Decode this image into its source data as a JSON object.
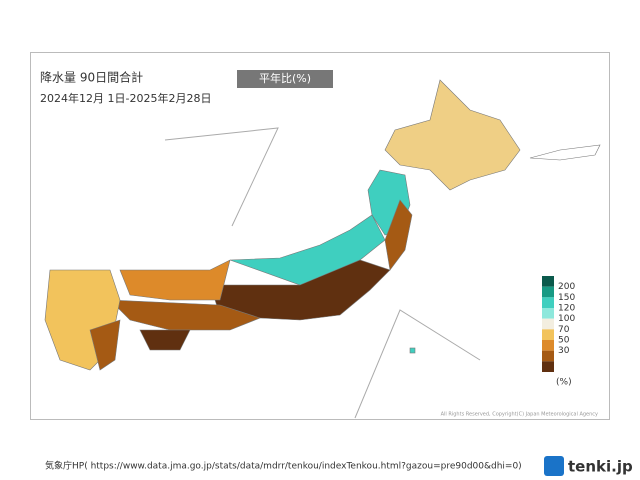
{
  "header": {
    "title": "降水量  90日間合計",
    "period": "2024年12月 1日-2025年2月28日",
    "badge": "平年比(%)"
  },
  "legend": {
    "ticks": [
      200,
      150,
      120,
      100,
      70,
      50,
      30
    ],
    "unit": "(%)",
    "colors": [
      "#0b5a4c",
      "#179a84",
      "#3fcfbf",
      "#8ee8dc",
      "#f3eee0",
      "#f2c35c",
      "#dd8a2a",
      "#a55a14",
      "#603010"
    ]
  },
  "copyright": "All Rights Reserved, Copyright(C) Japan Meteorological Agency",
  "footer": {
    "source": "気象庁HP( https://www.data.jma.go.jp/stats/data/mdrr/tenkou/indexTenkou.html?gazou=pre90d00&dhi=0)",
    "logo": "tenki.jp"
  }
}
